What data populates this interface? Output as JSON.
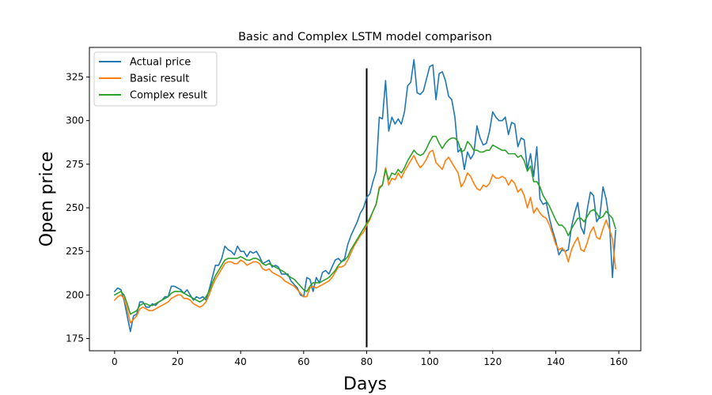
{
  "chart_data": {
    "type": "line",
    "title": "Basic and Complex LSTM model comparison",
    "xlabel": "Days",
    "ylabel": "Open price",
    "xlim": [
      -8,
      167
    ],
    "ylim": [
      168,
      342
    ],
    "xticks": [
      0,
      20,
      40,
      60,
      80,
      100,
      120,
      140,
      160
    ],
    "yticks": [
      175,
      200,
      225,
      250,
      275,
      300,
      325
    ],
    "legend_position": "upper left",
    "grid": false,
    "vertical_marker": {
      "x": 80,
      "y_range": [
        170,
        330
      ],
      "color": "#000000"
    },
    "series": [
      {
        "name": "Actual price",
        "color": "#1f77b4",
        "x": [
          0,
          1,
          2,
          3,
          4,
          5,
          6,
          7,
          8,
          9,
          10,
          11,
          12,
          13,
          14,
          15,
          16,
          17,
          18,
          19,
          20,
          21,
          22,
          23,
          24,
          25,
          26,
          27,
          28,
          29,
          30,
          31,
          32,
          33,
          34,
          35,
          36,
          37,
          38,
          39,
          40,
          41,
          42,
          43,
          44,
          45,
          46,
          47,
          48,
          49,
          50,
          51,
          52,
          53,
          54,
          55,
          56,
          57,
          58,
          59,
          60,
          61,
          62,
          63,
          64,
          65,
          66,
          67,
          68,
          69,
          70,
          71,
          72,
          73,
          74,
          75,
          76,
          77,
          78,
          79,
          80,
          81,
          82,
          83,
          84,
          85,
          86,
          87,
          88,
          89,
          90,
          91,
          92,
          93,
          94,
          95,
          96,
          97,
          98,
          99,
          100,
          101,
          102,
          103,
          104,
          105,
          106,
          107,
          108,
          109,
          110,
          111,
          112,
          113,
          114,
          115,
          116,
          117,
          118,
          119,
          120,
          121,
          122,
          123,
          124,
          125,
          126,
          127,
          128,
          129,
          130,
          131,
          132,
          133,
          134,
          135,
          136,
          137,
          138,
          139,
          140,
          141,
          142,
          143,
          144,
          145,
          146,
          147,
          148,
          149,
          150,
          151,
          152,
          153,
          154,
          155,
          156,
          157,
          158,
          159
        ],
        "values": [
          202,
          204,
          203,
          197,
          188,
          179,
          188,
          189,
          196,
          196,
          193,
          193,
          195,
          194,
          196,
          197,
          199,
          199,
          205,
          205,
          204,
          203,
          201,
          203,
          200,
          197,
          199,
          198,
          199,
          197,
          203,
          210,
          217,
          217,
          221,
          228,
          226,
          225,
          223,
          228,
          225,
          225,
          222,
          225,
          224,
          225,
          222,
          218,
          219,
          220,
          216,
          217,
          216,
          212,
          212,
          212,
          208,
          206,
          204,
          200,
          199,
          210,
          209,
          202,
          210,
          207,
          213,
          214,
          212,
          216,
          220,
          221,
          219,
          221,
          229,
          234,
          238,
          242,
          247,
          250,
          256,
          258,
          265,
          271,
          302,
          301,
          323,
          294,
          302,
          298,
          301,
          298,
          305,
          320,
          322,
          335,
          316,
          315,
          317,
          324,
          331,
          332,
          312,
          327,
          328,
          323,
          314,
          312,
          302,
          282,
          284,
          272,
          282,
          278,
          281,
          297,
          290,
          286,
          287,
          294,
          305,
          302,
          300,
          300,
          302,
          292,
          299,
          298,
          285,
          290,
          289,
          272,
          281,
          268,
          285,
          255,
          252,
          253,
          244,
          237,
          231,
          223,
          226,
          225,
          226,
          239,
          247,
          253,
          239,
          235,
          249,
          259,
          257,
          242,
          245,
          262,
          255,
          243,
          210,
          237
        ]
      },
      {
        "name": "Basic result",
        "color": "#ff7f0e",
        "x": [
          0,
          1,
          2,
          3,
          4,
          5,
          6,
          7,
          8,
          9,
          10,
          11,
          12,
          13,
          14,
          15,
          16,
          17,
          18,
          19,
          20,
          21,
          22,
          23,
          24,
          25,
          26,
          27,
          28,
          29,
          30,
          31,
          32,
          33,
          34,
          35,
          36,
          37,
          38,
          39,
          40,
          41,
          42,
          43,
          44,
          45,
          46,
          47,
          48,
          49,
          50,
          51,
          52,
          53,
          54,
          55,
          56,
          57,
          58,
          59,
          60,
          61,
          62,
          63,
          64,
          65,
          66,
          67,
          68,
          69,
          70,
          71,
          72,
          73,
          74,
          75,
          76,
          77,
          78,
          79,
          80,
          81,
          82,
          83,
          84,
          85,
          86,
          87,
          88,
          89,
          90,
          91,
          92,
          93,
          94,
          95,
          96,
          97,
          98,
          99,
          100,
          101,
          102,
          103,
          104,
          105,
          106,
          107,
          108,
          109,
          110,
          111,
          112,
          113,
          114,
          115,
          116,
          117,
          118,
          119,
          120,
          121,
          122,
          123,
          124,
          125,
          126,
          127,
          128,
          129,
          130,
          131,
          132,
          133,
          134,
          135,
          136,
          137,
          138,
          139,
          140,
          141,
          142,
          143,
          144,
          145,
          146,
          147,
          148,
          149,
          150,
          151,
          152,
          153,
          154,
          155,
          156,
          157,
          158,
          159
        ],
        "values": [
          197,
          199,
          200,
          198,
          192,
          184,
          186,
          188,
          192,
          193,
          192,
          191,
          191,
          192,
          193,
          194,
          195,
          196,
          198,
          199,
          200,
          200,
          198,
          198,
          197,
          195,
          194,
          193,
          194,
          196,
          200,
          205,
          209,
          212,
          215,
          218,
          219,
          219,
          218,
          218,
          220,
          219,
          217,
          218,
          219,
          219,
          218,
          215,
          214,
          215,
          213,
          212,
          211,
          210,
          208,
          207,
          206,
          205,
          203,
          201,
          199,
          199,
          204,
          205,
          204,
          205,
          206,
          207,
          208,
          210,
          213,
          216,
          216,
          217,
          220,
          224,
          228,
          231,
          234,
          236,
          240,
          243,
          248,
          252,
          262,
          263,
          273,
          263,
          267,
          266,
          270,
          267,
          271,
          274,
          277,
          280,
          276,
          273,
          275,
          278,
          282,
          283,
          276,
          274,
          272,
          277,
          279,
          276,
          273,
          270,
          262,
          265,
          270,
          268,
          264,
          261,
          260,
          263,
          262,
          264,
          269,
          267,
          267,
          268,
          267,
          263,
          266,
          264,
          259,
          261,
          257,
          250,
          256,
          247,
          250,
          247,
          245,
          244,
          240,
          235,
          229,
          226,
          227,
          225,
          219,
          226,
          230,
          233,
          226,
          225,
          230,
          236,
          239,
          233,
          232,
          238,
          243,
          238,
          232,
          215
        ]
      },
      {
        "name": "Complex result",
        "color": "#2ca02c",
        "x": [
          0,
          1,
          2,
          3,
          4,
          5,
          6,
          7,
          8,
          9,
          10,
          11,
          12,
          13,
          14,
          15,
          16,
          17,
          18,
          19,
          20,
          21,
          22,
          23,
          24,
          25,
          26,
          27,
          28,
          29,
          30,
          31,
          32,
          33,
          34,
          35,
          36,
          37,
          38,
          39,
          40,
          41,
          42,
          43,
          44,
          45,
          46,
          47,
          48,
          49,
          50,
          51,
          52,
          53,
          54,
          55,
          56,
          57,
          58,
          59,
          60,
          61,
          62,
          63,
          64,
          65,
          66,
          67,
          68,
          69,
          70,
          71,
          72,
          73,
          74,
          75,
          76,
          77,
          78,
          79,
          80,
          81,
          82,
          83,
          84,
          85,
          86,
          87,
          88,
          89,
          90,
          91,
          92,
          93,
          94,
          95,
          96,
          97,
          98,
          99,
          100,
          101,
          102,
          103,
          104,
          105,
          106,
          107,
          108,
          109,
          110,
          111,
          112,
          113,
          114,
          115,
          116,
          117,
          118,
          119,
          120,
          121,
          122,
          123,
          124,
          125,
          126,
          127,
          128,
          129,
          130,
          131,
          132,
          133,
          134,
          135,
          136,
          137,
          138,
          139,
          140,
          141,
          142,
          143,
          144,
          145,
          146,
          147,
          148,
          149,
          150,
          151,
          152,
          153,
          154,
          155,
          156,
          157,
          158,
          159
        ],
        "values": [
          200,
          201,
          202,
          200,
          195,
          189,
          190,
          191,
          194,
          195,
          195,
          194,
          194,
          195,
          196,
          197,
          198,
          199,
          201,
          202,
          202,
          202,
          201,
          200,
          199,
          198,
          197,
          196,
          197,
          199,
          202,
          207,
          211,
          214,
          217,
          220,
          221,
          221,
          221,
          221,
          222,
          221,
          220,
          220,
          221,
          221,
          220,
          218,
          217,
          218,
          217,
          216,
          215,
          214,
          213,
          211,
          210,
          209,
          207,
          205,
          203,
          202,
          205,
          207,
          207,
          207,
          208,
          209,
          210,
          212,
          214,
          217,
          219,
          220,
          222,
          226,
          229,
          232,
          235,
          238,
          241,
          244,
          248,
          252,
          261,
          263,
          272,
          266,
          270,
          269,
          272,
          270,
          273,
          277,
          280,
          283,
          281,
          280,
          281,
          284,
          288,
          291,
          291,
          287,
          284,
          287,
          289,
          290,
          290,
          288,
          282,
          283,
          288,
          286,
          283,
          283,
          282,
          282,
          283,
          283,
          286,
          285,
          284,
          283,
          283,
          281,
          281,
          281,
          279,
          280,
          277,
          271,
          274,
          265,
          265,
          262,
          257,
          254,
          251,
          247,
          243,
          240,
          240,
          238,
          234,
          238,
          241,
          244,
          244,
          242,
          245,
          248,
          249,
          247,
          244,
          245,
          248,
          246,
          244,
          238
        ]
      }
    ]
  }
}
